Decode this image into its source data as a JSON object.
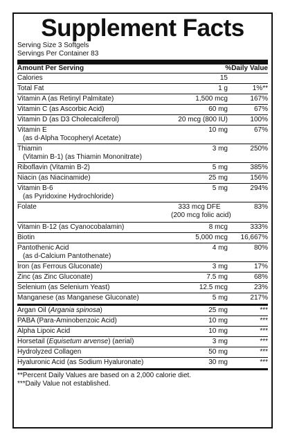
{
  "title": "Supplement Facts",
  "serving_size": "Serving Size 3 Softgels",
  "servings_per_container": "Servings Per Container 83",
  "header": {
    "amount": "Amount Per Serving",
    "dv": "%Daily Value"
  },
  "rows": [
    {
      "name": "Calories",
      "amount": "15",
      "dv": ""
    },
    {
      "name": "Total Fat",
      "amount": "1 g",
      "dv": "1%**"
    },
    {
      "name": "Vitamin A (as Retinyl Palmitate)",
      "amount": "1,500 mcg",
      "dv": "167%"
    },
    {
      "name": "Vitamin C (as Ascorbic Acid)",
      "amount": "60 mg",
      "dv": "67%"
    },
    {
      "name": "Vitamin D (as D3 Cholecalciferol)",
      "amount": "20 mcg (800 IU)",
      "dv": "100%"
    },
    {
      "name": "Vitamin E",
      "sub": "(as d-Alpha Tocopheryl Acetate)",
      "amount": "10 mg",
      "dv": "67%"
    },
    {
      "name": "Thiamin",
      "sub": "(Vitamin B-1) (as Thiamin Mononitrate)",
      "amount": "3 mg",
      "dv": "250%"
    },
    {
      "name": "Riboflavin (Vitamin B-2)",
      "amount": "5 mg",
      "dv": "385%"
    },
    {
      "name": "Niacin (as Niacinamide)",
      "amount": "25 mg",
      "dv": "156%"
    },
    {
      "name": "Vitamin B-6",
      "sub": "(as Pyridoxine Hydrochloride)",
      "amount": "5 mg",
      "dv": "294%"
    },
    {
      "name": "Folate",
      "amount": "333 mcg DFE",
      "amount2": "(200 mcg folic acid)",
      "dv": "83%"
    },
    {
      "name": "Vitamin B-12 (as Cyanocobalamin)",
      "amount": "8 mcg",
      "dv": "333%"
    },
    {
      "name": "Biotin",
      "amount": "5,000 mcg",
      "dv": "16,667%"
    },
    {
      "name": "Pantothenic Acid",
      "sub": "(as d-Calcium Pantothenate)",
      "amount": "4 mg",
      "dv": "80%"
    },
    {
      "name": "Iron (as Ferrous Gluconate)",
      "amount": "3 mg",
      "dv": "17%"
    },
    {
      "name": "Zinc (as Zinc Gluconate)",
      "amount": "7.5 mg",
      "dv": "68%"
    },
    {
      "name": "Selenium (as Selenium Yeast)",
      "amount": "12.5 mcg",
      "dv": "23%"
    },
    {
      "name": "Manganese (as Manganese Gluconate)",
      "amount": "5 mg",
      "dv": "217%"
    }
  ],
  "rows2": [
    {
      "name": "Argan Oil (",
      "italic": "Argania spinosa",
      "after": ")",
      "amount": "25 mg",
      "dv": "***"
    },
    {
      "name": "PABA (Para-Aminobenzoic Acid)",
      "amount": "10 mg",
      "dv": "***"
    },
    {
      "name": "Alpha Lipoic Acid",
      "amount": "10 mg",
      "dv": "***"
    },
    {
      "name": "Horsetail (",
      "italic": "Equisetum arvense",
      "after": ") (aerial)",
      "amount": "3 mg",
      "dv": "***"
    },
    {
      "name": "Hydrolyzed Collagen",
      "amount": "50 mg",
      "dv": "***"
    },
    {
      "name": "Hyaluronic Acid (as Sodium Hyaluronate)",
      "amount": "30 mg",
      "dv": "***"
    }
  ],
  "footnotes": [
    "**Percent Daily Values are based on a 2,000 calorie diet.",
    "***Daily Value not established."
  ]
}
